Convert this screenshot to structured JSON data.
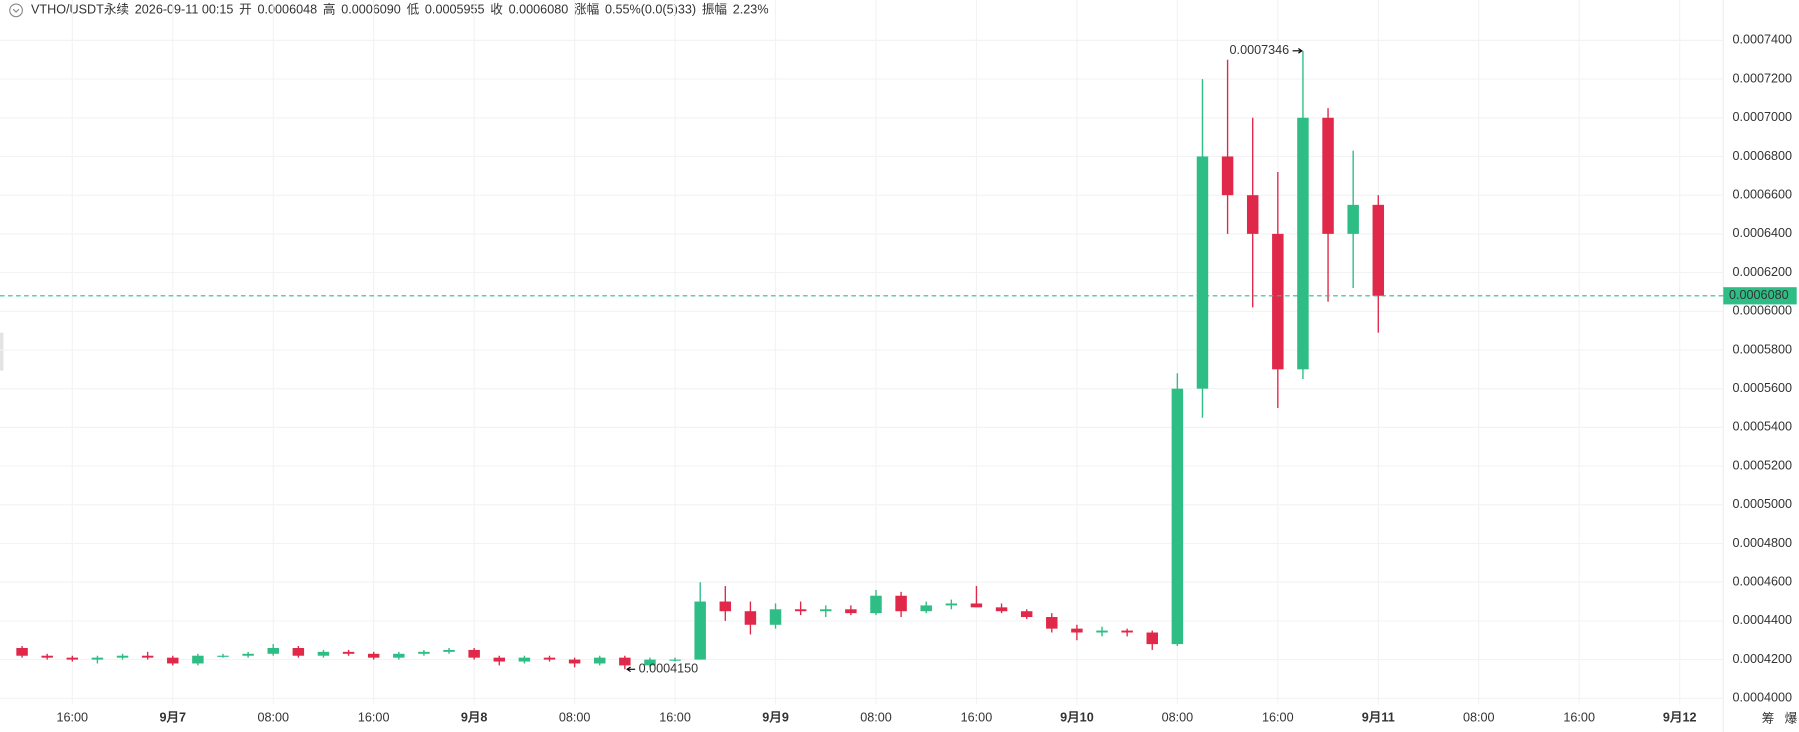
{
  "header": {
    "symbol": "VTHO/USDT永续",
    "time": "2026-09-11 00:15",
    "fields": [
      {
        "label": "开",
        "value": "0.0006048"
      },
      {
        "label": "高",
        "value": "0.0006090"
      },
      {
        "label": "低",
        "value": "0.0005955"
      },
      {
        "label": "收",
        "value": "0.0006080"
      },
      {
        "label": "涨幅",
        "value": "0.55%(0.0(5)33)"
      },
      {
        "label": "振幅",
        "value": "2.23%"
      }
    ]
  },
  "chart_data": {
    "type": "candlestick",
    "categories": [
      null,
      null,
      "16:00",
      null,
      null,
      null,
      "9月7",
      null,
      null,
      null,
      "08:00",
      null,
      null,
      null,
      "16:00",
      null,
      null,
      null,
      "9月8",
      null,
      null,
      null,
      "08:00",
      null,
      null,
      null,
      "16:00",
      null,
      null,
      null,
      "9月9",
      null,
      null,
      null,
      "08:00",
      null,
      null,
      null,
      "16:00",
      null,
      null,
      null,
      "9月10",
      null,
      null,
      null,
      "08:00",
      null,
      null,
      null,
      "16:00",
      null,
      null,
      null,
      "9月11",
      null,
      null,
      null,
      "08:00",
      null,
      null,
      null,
      "16:00",
      null,
      null,
      null,
      "9月12"
    ],
    "open": [
      0.000426,
      0.000422,
      0.000421,
      0.00042,
      0.000421,
      0.000422,
      0.000421,
      0.000418,
      0.000422,
      0.000422,
      0.000423,
      0.000426,
      0.000422,
      0.000424,
      0.000423,
      0.000421,
      0.000423,
      0.000424,
      0.000425,
      0.000421,
      0.000419,
      0.000421,
      0.00042,
      0.000418,
      0.000421,
      0.000417,
      0.00042,
      0.00042,
      0.00045,
      0.000445,
      0.000438,
      0.000446,
      0.000445,
      0.000446,
      0.000444,
      0.000453,
      0.000445,
      0.000448,
      0.000449,
      0.000447,
      0.000445,
      0.000442,
      0.000436,
      0.000434,
      0.000435,
      0.000434,
      0.000428,
      0.00056,
      0.00068,
      0.00066,
      0.00064,
      0.00057,
      0.0007,
      0.00064,
      0.000655,
      null,
      null,
      null,
      null,
      null,
      null,
      null,
      null,
      null,
      null,
      null,
      null
    ],
    "high": [
      0.000427,
      0.000423,
      0.000422,
      0.000422,
      0.000423,
      0.000424,
      0.000422,
      0.000423,
      0.000423,
      0.000424,
      0.000428,
      0.000427,
      0.000425,
      0.000425,
      0.000424,
      0.000424,
      0.000425,
      0.000426,
      0.000426,
      0.000422,
      0.000422,
      0.000422,
      0.000421,
      0.000422,
      0.000422,
      0.000421,
      0.000421,
      0.00046,
      0.000458,
      0.00045,
      0.000449,
      0.00045,
      0.000448,
      0.000448,
      0.000456,
      0.000455,
      0.00045,
      0.000451,
      0.000458,
      0.000449,
      0.000446,
      0.000444,
      0.000438,
      0.000437,
      0.000436,
      0.000435,
      0.000568,
      0.00072,
      0.00073,
      0.0007,
      0.000672,
      0.0007346,
      0.000705,
      0.000683,
      0.00066,
      null,
      null,
      null,
      null,
      null,
      null,
      null,
      null,
      null,
      null,
      null,
      null
    ],
    "low": [
      0.000421,
      0.00042,
      0.000419,
      0.000418,
      0.00042,
      0.00042,
      0.000417,
      0.000417,
      0.000421,
      0.000421,
      0.000422,
      0.000421,
      0.000421,
      0.000422,
      0.00042,
      0.00042,
      0.000422,
      0.000423,
      0.00042,
      0.000417,
      0.000418,
      0.000419,
      0.000416,
      0.000417,
      0.000415,
      0.000416,
      0.000419,
      0.00042,
      0.00044,
      0.000433,
      0.000436,
      0.000443,
      0.000442,
      0.000443,
      0.000443,
      0.000442,
      0.000444,
      0.000446,
      0.000447,
      0.000444,
      0.000441,
      0.000434,
      0.00043,
      0.000432,
      0.000432,
      0.000425,
      0.000427,
      0.000545,
      0.00064,
      0.000602,
      0.00055,
      0.000565,
      0.000605,
      0.000612,
      0.000589,
      null,
      null,
      null,
      null,
      null,
      null,
      null,
      null,
      null,
      null,
      null,
      null
    ],
    "close": [
      0.000422,
      0.000421,
      0.00042,
      0.000421,
      0.000422,
      0.000421,
      0.000418,
      0.000422,
      0.000422,
      0.000423,
      0.000426,
      0.000422,
      0.000424,
      0.000423,
      0.000421,
      0.000423,
      0.000424,
      0.000425,
      0.000421,
      0.000419,
      0.000421,
      0.00042,
      0.000418,
      0.000421,
      0.000417,
      0.00042,
      0.00042,
      0.00045,
      0.000445,
      0.000438,
      0.000446,
      0.000445,
      0.000446,
      0.000444,
      0.000453,
      0.000445,
      0.000448,
      0.000449,
      0.000447,
      0.000445,
      0.000442,
      0.000436,
      0.000434,
      0.000435,
      0.000434,
      0.000428,
      0.00056,
      0.00068,
      0.00066,
      0.00064,
      0.00057,
      0.0007,
      0.00064,
      0.000655,
      0.000608,
      null,
      null,
      null,
      null,
      null,
      null,
      null,
      null,
      null,
      null,
      null,
      null
    ],
    "up_color": "#2ebd85",
    "down_color": "#e0294a",
    "high_label": "0.0007346",
    "low_label": "0.0004150",
    "last_price": {
      "value": 0.000608,
      "label": "0.0006080"
    },
    "ylim": [
      0.000398,
      0.000749
    ],
    "yticks": [
      {
        "value": 0.0004,
        "label": "0.0004000"
      },
      {
        "value": 0.00042,
        "label": "0.0004200"
      },
      {
        "value": 0.00044,
        "label": "0.0004400"
      },
      {
        "value": 0.00046,
        "label": "0.0004600"
      },
      {
        "value": 0.00048,
        "label": "0.0004800"
      },
      {
        "value": 0.0005,
        "label": "0.0005000"
      },
      {
        "value": 0.00052,
        "label": "0.0005200"
      },
      {
        "value": 0.00054,
        "label": "0.0005400"
      },
      {
        "value": 0.00056,
        "label": "0.0005600"
      },
      {
        "value": 0.00058,
        "label": "0.0005800"
      },
      {
        "value": 0.0006,
        "label": "0.0006000"
      },
      {
        "value": 0.00062,
        "label": "0.0006200"
      },
      {
        "value": 0.00064,
        "label": "0.0006400"
      },
      {
        "value": 0.00066,
        "label": "0.0006600"
      },
      {
        "value": 0.00068,
        "label": "0.0006800"
      },
      {
        "value": 0.0007,
        "label": "0.0007000"
      },
      {
        "value": 0.00072,
        "label": "0.0007200"
      },
      {
        "value": 0.00074,
        "label": "0.0007400"
      }
    ],
    "grid": true
  },
  "side_buttons": [
    "筹",
    "爆"
  ]
}
